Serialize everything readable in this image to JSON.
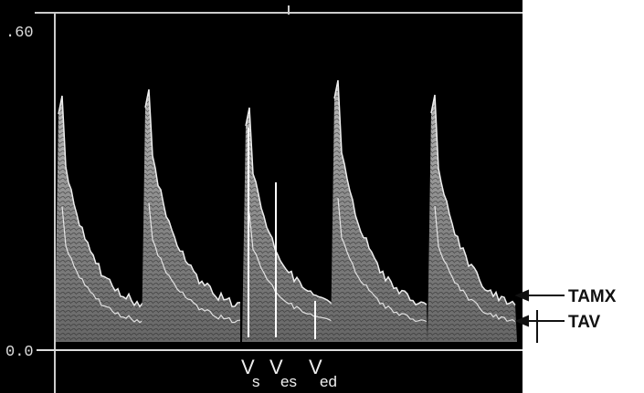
{
  "axis": {
    "top_label": ".60",
    "bottom_label": "0.0"
  },
  "markers": [
    {
      "main": "V",
      "sub": "s"
    },
    {
      "main": "V",
      "sub": "es"
    },
    {
      "main": "V",
      "sub": "ed"
    }
  ],
  "annotations": [
    "TAMX",
    "TAV"
  ]
}
